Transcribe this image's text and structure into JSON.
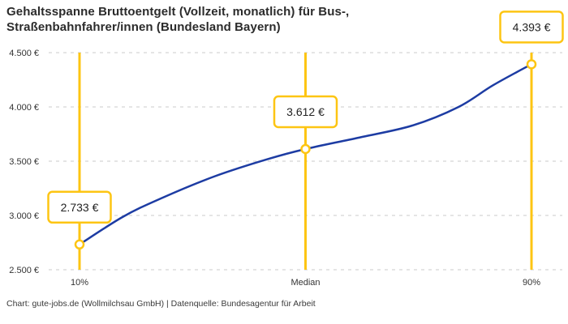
{
  "header": {
    "title_lines": [
      "Gehaltsspanne Bruttoentgelt (Vollzeit, monatlich) für Bus-,",
      "Straßenbahnfahrer/innen (Bundesland Bayern)"
    ]
  },
  "footer": {
    "attribution": "Chart: gute-jobs.de (Wollmilchsau GmbH) | Datenquelle: Bundesagentur für Arbeit"
  },
  "colors": {
    "accent_yellow": "#FDC513",
    "curve_blue": "#1D3CA3",
    "grid_gray": "#CBCBCB",
    "tick_text": "#333333",
    "label_text": "#222222",
    "marker_fill": "#FFFFFF"
  },
  "chart_data": {
    "type": "line",
    "title": "Gehaltsspanne Bruttoentgelt (Vollzeit, monatlich) für Bus-, Straßenbahnfahrer/innen (Bundesland Bayern)",
    "xlabel": "",
    "ylabel": "",
    "ylim": [
      2500,
      4500
    ],
    "xlim": [
      10,
      90
    ],
    "grid": "horizontal-dashed",
    "legend": "none",
    "y_ticks": [
      {
        "value": 4500,
        "label": "4.500 €"
      },
      {
        "value": 4000,
        "label": "4.000 €"
      },
      {
        "value": 3500,
        "label": "3.500 €"
      },
      {
        "value": 3000,
        "label": "3.000 €"
      },
      {
        "value": 2500,
        "label": "2.500 €"
      }
    ],
    "quantiles": [
      {
        "percentile": 10,
        "label": "10%",
        "value": 2733,
        "value_label": "2.733 €"
      },
      {
        "percentile": 50,
        "label": "Median",
        "value": 3612,
        "value_label": "3.612 €"
      },
      {
        "percentile": 90,
        "label": "90%",
        "value": 4393,
        "value_label": "4.393 €"
      }
    ],
    "curve_samples": [
      [
        10,
        2733
      ],
      [
        17.6,
        2985
      ],
      [
        24.4,
        3157
      ],
      [
        33.8,
        3358
      ],
      [
        43.5,
        3522
      ],
      [
        50,
        3612
      ],
      [
        59.3,
        3716
      ],
      [
        68.9,
        3828
      ],
      [
        77.1,
        4000
      ],
      [
        83.2,
        4200
      ],
      [
        90,
        4393
      ]
    ]
  }
}
